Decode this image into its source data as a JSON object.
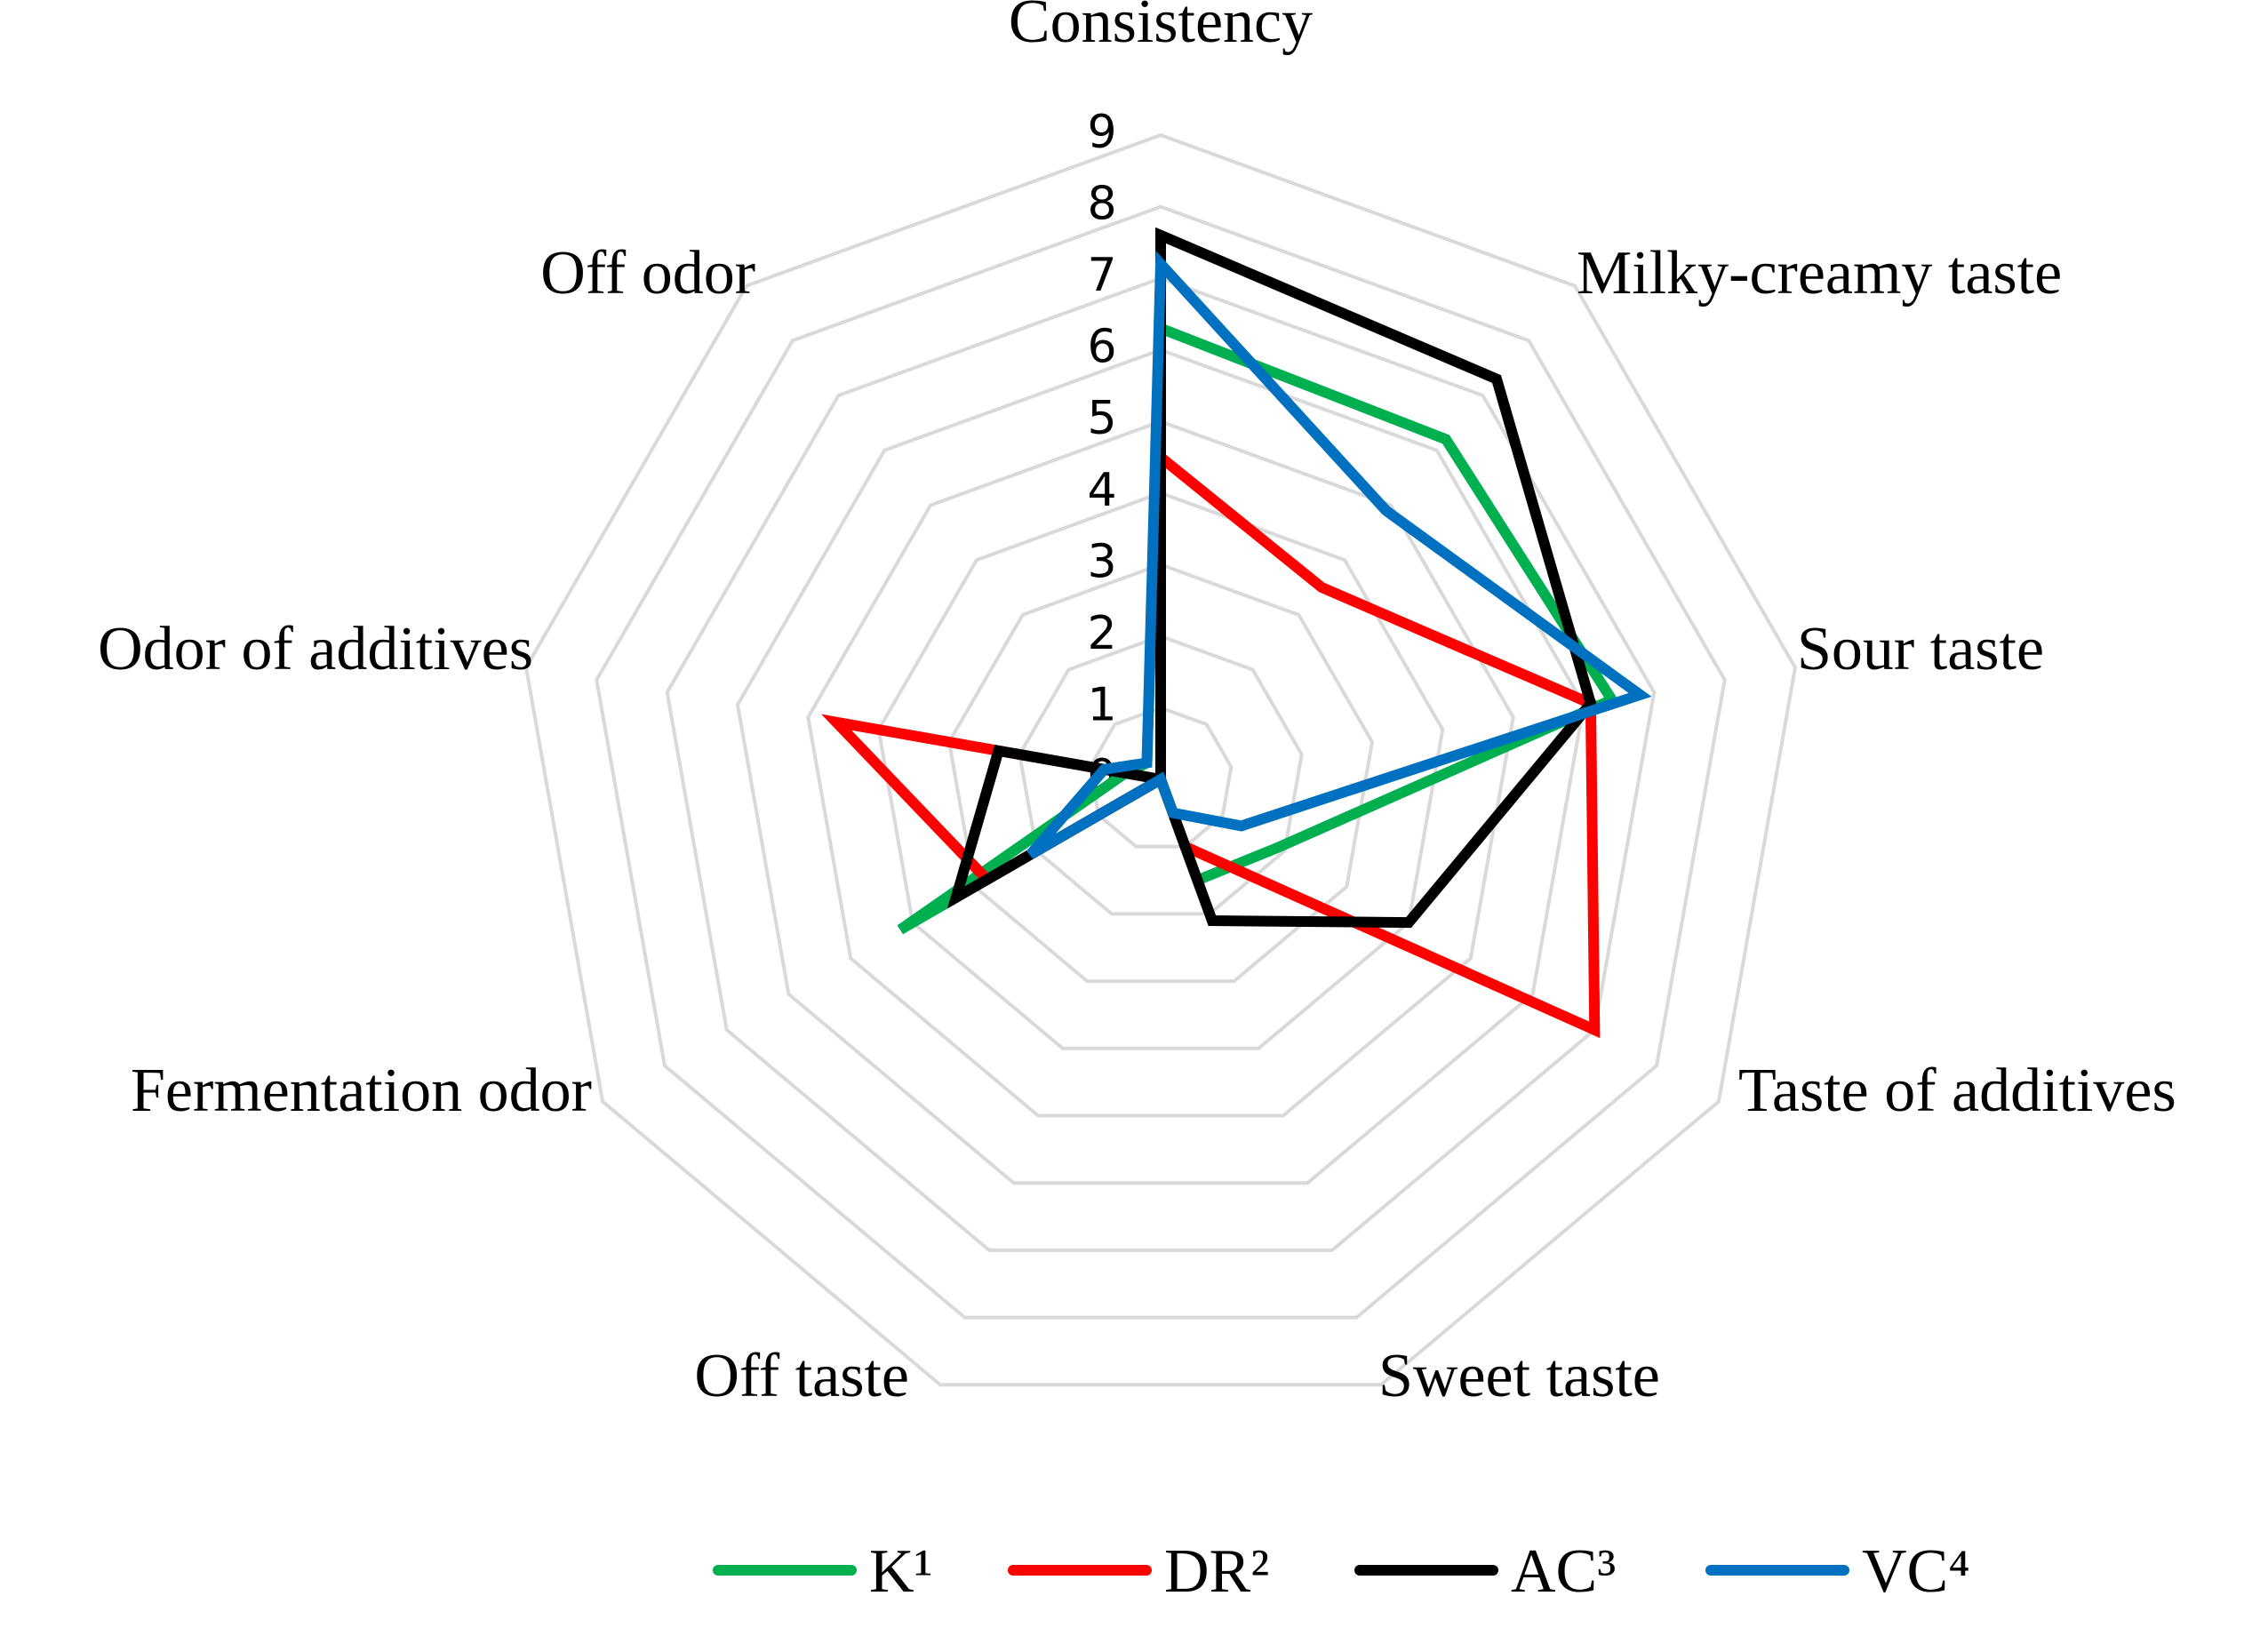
{
  "chart_data": {
    "type": "radar",
    "title": "",
    "axes": [
      "Consistency",
      "Milky-creamy taste",
      "Sour taste",
      "Taste of additives",
      "Sweet taste",
      "Off taste",
      "Fermentation odor",
      "Odor of additives",
      "Off odor"
    ],
    "rlim": [
      0,
      9
    ],
    "ticks": [
      "0",
      "1",
      "2",
      "3",
      "4",
      "5",
      "6",
      "7",
      "8",
      "9"
    ],
    "grid": true,
    "legend_position": "bottom",
    "series": [
      {
        "name": "K¹",
        "color": "#00b050",
        "values": [
          6.3,
          6.2,
          6.4,
          1.9,
          1.5,
          0.0,
          4.2,
          0.5,
          0.3
        ]
      },
      {
        "name": "DR²",
        "color": "#ff0000",
        "values": [
          4.5,
          3.5,
          6.1,
          7.0,
          1.0,
          0.0,
          2.8,
          4.6,
          0.0
        ]
      },
      {
        "name": "AC³",
        "color": "#000000",
        "values": [
          7.6,
          7.3,
          6.1,
          4.0,
          2.1,
          0.0,
          3.3,
          2.3,
          0.0
        ]
      },
      {
        "name": "VC⁴",
        "color": "#0070c0",
        "values": [
          7.2,
          4.9,
          6.8,
          1.3,
          0.5,
          0.0,
          2.1,
          0.8,
          0.3
        ]
      }
    ]
  }
}
